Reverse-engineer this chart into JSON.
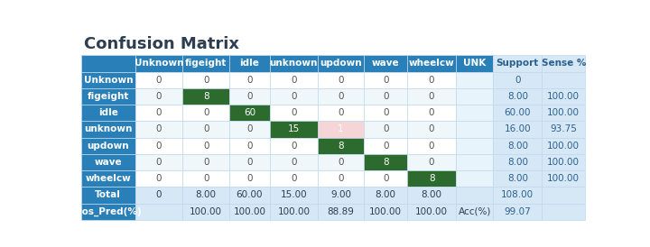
{
  "title": "Confusion Matrix",
  "col_headers": [
    "Unknown",
    "figeight",
    "idle",
    "unknown",
    "updown",
    "wave",
    "wheelcw",
    "UNK",
    "Support",
    "Sense %"
  ],
  "row_headers": [
    "Unknown",
    "figeight",
    "idle",
    "unknown",
    "updown",
    "wave",
    "wheelcw",
    "Total",
    "Pos_Pred(%)"
  ],
  "matrix": [
    [
      0,
      0,
      0,
      0,
      0,
      0,
      0,
      "",
      0,
      ""
    ],
    [
      0,
      8,
      0,
      0,
      0,
      0,
      0,
      "",
      "8.00",
      "100.00"
    ],
    [
      0,
      0,
      60,
      0,
      0,
      0,
      0,
      "",
      "60.00",
      "100.00"
    ],
    [
      0,
      0,
      0,
      15,
      1,
      0,
      0,
      "",
      "16.00",
      "93.75"
    ],
    [
      0,
      0,
      0,
      0,
      8,
      0,
      0,
      "",
      "8.00",
      "100.00"
    ],
    [
      0,
      0,
      0,
      0,
      0,
      8,
      0,
      "",
      "8.00",
      "100.00"
    ],
    [
      0,
      0,
      0,
      0,
      0,
      0,
      8,
      "",
      "8.00",
      "100.00"
    ],
    [
      0,
      "8.00",
      "60.00",
      "15.00",
      "9.00",
      "8.00",
      "8.00",
      "",
      "108.00",
      ""
    ],
    [
      "",
      "100.00",
      "100.00",
      "100.00",
      "88.89",
      "100.00",
      "100.00",
      "Acc(%)",
      "99.07",
      ""
    ]
  ],
  "cell_colors": {
    "1_1": "#2d6a2d",
    "2_2": "#2d6a2d",
    "3_3": "#2d6a2d",
    "3_4": "#f5d5d5",
    "4_4": "#2d6a2d",
    "5_5": "#2d6a2d",
    "6_6": "#2d6a2d"
  },
  "header_bg": "#2980b9",
  "header_text_color": "#ffffff",
  "support_bg": "#d6e8f5",
  "total_row_bg": "#d6e8f5",
  "unk_col_bg": "#e8f4fb",
  "cell_border_color": "#c0d8ec",
  "title_color": "#2c3e50",
  "title_fontsize": 13,
  "data_fontsize": 7.5,
  "header_fontsize": 7.5,
  "support_text_color": "#2c6090",
  "data_text_color": "#555555",
  "total_text_color": "#2c3e50"
}
